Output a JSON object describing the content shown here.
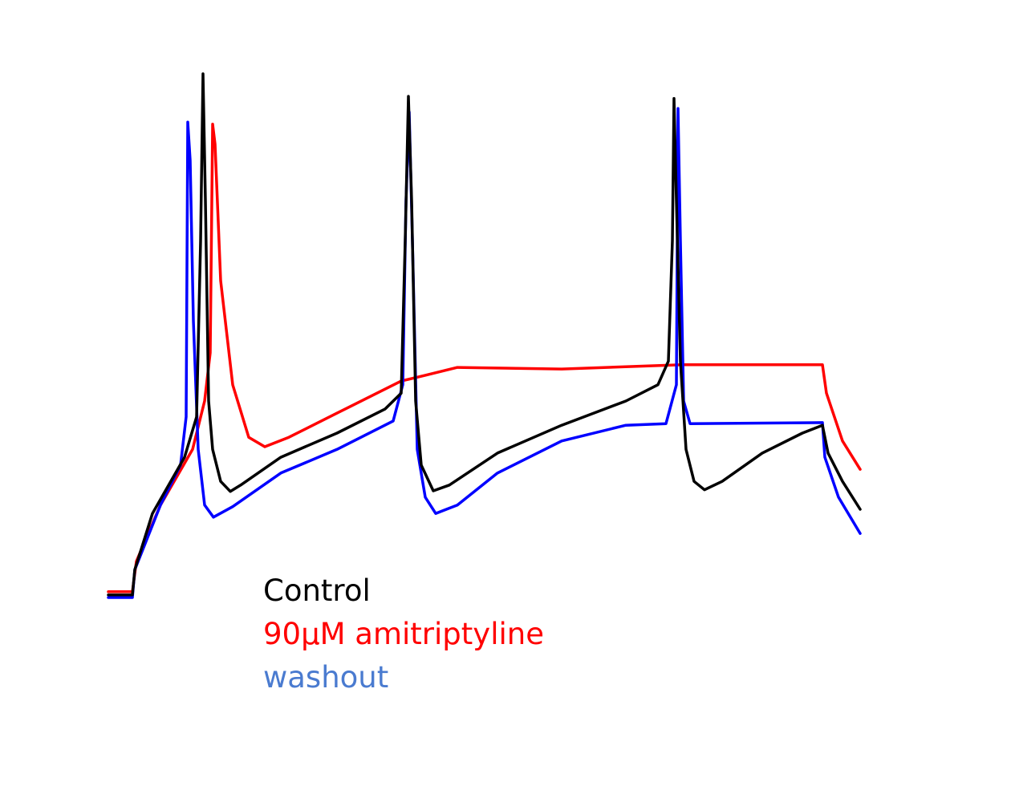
{
  "chart_data": {
    "type": "line",
    "title": "",
    "xlabel": "",
    "ylabel": "",
    "axes_visible": false,
    "grid": false,
    "legend_placement": "bottom-center",
    "xlim": [
      0,
      937
    ],
    "ylim": [
      0,
      100
    ],
    "series": [
      {
        "name": "90µM amitriptyline",
        "color": "#ff0000",
        "legend_color": "#ff0000",
        "points": [
          [
            0,
            1.1
          ],
          [
            30,
            1.1
          ],
          [
            35,
            6.9
          ],
          [
            65,
            17.6
          ],
          [
            105,
            28.2
          ],
          [
            120,
            37.4
          ],
          [
            127,
            46.6
          ],
          [
            130,
            90.1
          ],
          [
            133,
            86.3
          ],
          [
            140,
            60.3
          ],
          [
            155,
            40.5
          ],
          [
            175,
            30.5
          ],
          [
            195,
            28.7
          ],
          [
            225,
            30.5
          ],
          [
            285,
            35.1
          ],
          [
            365,
            41.2
          ],
          [
            395,
            42.3
          ],
          [
            435,
            43.8
          ],
          [
            565,
            43.5
          ],
          [
            715,
            44.3
          ],
          [
            890,
            44.3
          ],
          [
            895,
            38.9
          ],
          [
            915,
            29.8
          ],
          [
            937,
            24.4
          ]
        ]
      },
      {
        "name": "washout",
        "color": "#0000ff",
        "legend_color": "#4a7bd0",
        "points": [
          [
            0,
            0
          ],
          [
            30,
            0
          ],
          [
            33,
            5.3
          ],
          [
            65,
            17.6
          ],
          [
            90,
            25.2
          ],
          [
            97,
            34.4
          ],
          [
            99,
            90.5
          ],
          [
            102,
            83.2
          ],
          [
            106,
            52.7
          ],
          [
            112,
            28.2
          ],
          [
            120,
            17.6
          ],
          [
            131,
            15.3
          ],
          [
            155,
            17.3
          ],
          [
            215,
            23.7
          ],
          [
            285,
            28.2
          ],
          [
            355,
            33.6
          ],
          [
            367,
            40.5
          ],
          [
            371,
            75.6
          ],
          [
            375,
            92.4
          ],
          [
            379,
            67.9
          ],
          [
            385,
            28.2
          ],
          [
            395,
            19.1
          ],
          [
            408,
            16.0
          ],
          [
            435,
            17.6
          ],
          [
            485,
            23.7
          ],
          [
            565,
            29.8
          ],
          [
            645,
            32.8
          ],
          [
            695,
            33.1
          ],
          [
            708,
            40.5
          ],
          [
            710,
            93.1
          ],
          [
            713,
            67.9
          ],
          [
            717,
            37.4
          ],
          [
            725,
            33.1
          ],
          [
            890,
            33.3
          ],
          [
            893,
            26.7
          ],
          [
            910,
            19.1
          ],
          [
            937,
            12.2
          ]
        ]
      },
      {
        "name": "Control",
        "color": "#000000",
        "legend_color": "#000000",
        "points": [
          [
            0,
            0.5
          ],
          [
            30,
            0.5
          ],
          [
            33,
            5.3
          ],
          [
            55,
            16.0
          ],
          [
            95,
            26.7
          ],
          [
            110,
            34.4
          ],
          [
            115,
            67.9
          ],
          [
            118,
            99.7
          ],
          [
            121,
            75.6
          ],
          [
            125,
            37.4
          ],
          [
            130,
            28.2
          ],
          [
            140,
            22.1
          ],
          [
            152,
            20.2
          ],
          [
            165,
            21.4
          ],
          [
            215,
            26.7
          ],
          [
            285,
            31.3
          ],
          [
            345,
            35.9
          ],
          [
            365,
            38.9
          ],
          [
            370,
            67.9
          ],
          [
            374,
            95.4
          ],
          [
            378,
            75.6
          ],
          [
            383,
            37.4
          ],
          [
            390,
            25.2
          ],
          [
            405,
            20.3
          ],
          [
            425,
            21.4
          ],
          [
            485,
            27.5
          ],
          [
            565,
            32.8
          ],
          [
            645,
            37.4
          ],
          [
            685,
            40.5
          ],
          [
            698,
            45.0
          ],
          [
            703,
            67.9
          ],
          [
            705,
            95.0
          ],
          [
            708,
            75.6
          ],
          [
            713,
            45.0
          ],
          [
            720,
            28.2
          ],
          [
            730,
            22.1
          ],
          [
            743,
            20.5
          ],
          [
            765,
            22.1
          ],
          [
            815,
            27.5
          ],
          [
            865,
            31.3
          ],
          [
            890,
            32.8
          ],
          [
            897,
            27.5
          ],
          [
            915,
            22.1
          ],
          [
            937,
            16.8
          ]
        ]
      }
    ],
    "legend": [
      "Control",
      "90µM amitriptyline",
      "washout"
    ]
  }
}
